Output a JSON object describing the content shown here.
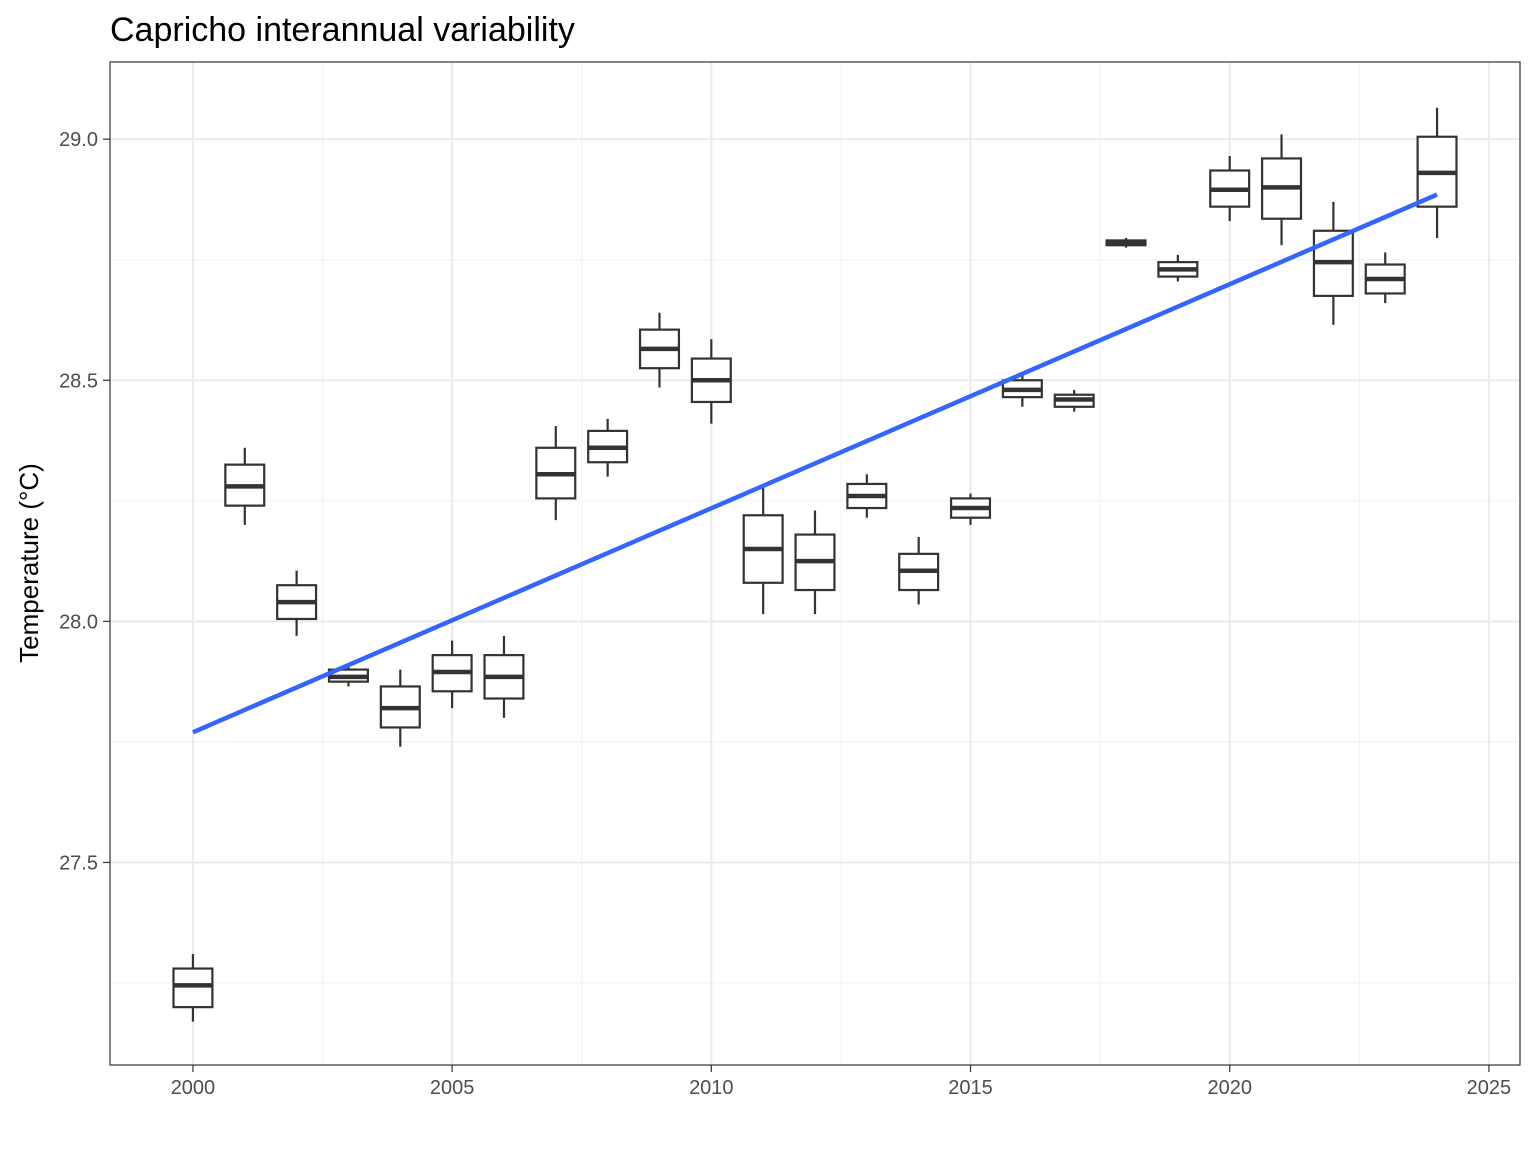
{
  "chart_data": {
    "type": "box",
    "title": "Capricho interannual variability",
    "xlabel": "",
    "ylabel": "Temperature (°C)",
    "xlim": [
      1998.4,
      2025.6
    ],
    "ylim": [
      27.08,
      29.16
    ],
    "x_ticks": [
      2000,
      2005,
      2010,
      2015,
      2020,
      2025
    ],
    "x_tick_labels": [
      "2000",
      "2005",
      "2010",
      "2015",
      "2020",
      "2025"
    ],
    "y_ticks": [
      27.5,
      28.0,
      28.5,
      29.0
    ],
    "y_tick_labels": [
      "27.5",
      "28.0",
      "28.5",
      "29.0"
    ],
    "grid": true,
    "legend": "none",
    "box_color": "#333333",
    "trend_color": "#3366ff",
    "boxes": [
      {
        "year": 2000,
        "min": 27.17,
        "q1": 27.2,
        "median": 27.245,
        "q3": 27.28,
        "max": 27.31
      },
      {
        "year": 2001,
        "min": 28.2,
        "q1": 28.24,
        "median": 28.28,
        "q3": 28.325,
        "max": 28.36
      },
      {
        "year": 2002,
        "min": 27.97,
        "q1": 28.005,
        "median": 28.04,
        "q3": 28.075,
        "max": 28.105
      },
      {
        "year": 2003,
        "min": 27.865,
        "q1": 27.875,
        "median": 27.885,
        "q3": 27.9,
        "max": 27.91
      },
      {
        "year": 2004,
        "min": 27.74,
        "q1": 27.78,
        "median": 27.82,
        "q3": 27.865,
        "max": 27.9
      },
      {
        "year": 2005,
        "min": 27.82,
        "q1": 27.855,
        "median": 27.895,
        "q3": 27.93,
        "max": 27.96
      },
      {
        "year": 2006,
        "min": 27.8,
        "q1": 27.84,
        "median": 27.885,
        "q3": 27.93,
        "max": 27.97
      },
      {
        "year": 2007,
        "min": 28.21,
        "q1": 28.255,
        "median": 28.305,
        "q3": 28.36,
        "max": 28.405
      },
      {
        "year": 2008,
        "min": 28.3,
        "q1": 28.33,
        "median": 28.36,
        "q3": 28.395,
        "max": 28.42
      },
      {
        "year": 2009,
        "min": 28.485,
        "q1": 28.525,
        "median": 28.565,
        "q3": 28.605,
        "max": 28.64
      },
      {
        "year": 2010,
        "min": 28.41,
        "q1": 28.455,
        "median": 28.5,
        "q3": 28.545,
        "max": 28.585
      },
      {
        "year": 2011,
        "min": 28.015,
        "q1": 28.08,
        "median": 28.15,
        "q3": 28.22,
        "max": 28.28
      },
      {
        "year": 2012,
        "min": 28.015,
        "q1": 28.065,
        "median": 28.125,
        "q3": 28.18,
        "max": 28.23
      },
      {
        "year": 2013,
        "min": 28.215,
        "q1": 28.235,
        "median": 28.26,
        "q3": 28.285,
        "max": 28.305
      },
      {
        "year": 2014,
        "min": 28.035,
        "q1": 28.065,
        "median": 28.105,
        "q3": 28.14,
        "max": 28.175
      },
      {
        "year": 2015,
        "min": 28.2,
        "q1": 28.215,
        "median": 28.235,
        "q3": 28.255,
        "max": 28.265
      },
      {
        "year": 2016,
        "min": 28.445,
        "q1": 28.465,
        "median": 28.48,
        "q3": 28.5,
        "max": 28.51
      },
      {
        "year": 2017,
        "min": 28.435,
        "q1": 28.445,
        "median": 28.46,
        "q3": 28.47,
        "max": 28.48
      },
      {
        "year": 2018,
        "min": 28.775,
        "q1": 28.78,
        "median": 28.785,
        "q3": 28.79,
        "max": 28.795
      },
      {
        "year": 2019,
        "min": 28.705,
        "q1": 28.715,
        "median": 28.73,
        "q3": 28.745,
        "max": 28.76
      },
      {
        "year": 2020,
        "min": 28.83,
        "q1": 28.86,
        "median": 28.895,
        "q3": 28.935,
        "max": 28.965
      },
      {
        "year": 2021,
        "min": 28.78,
        "q1": 28.835,
        "median": 28.9,
        "q3": 28.96,
        "max": 29.01
      },
      {
        "year": 2022,
        "min": 28.615,
        "q1": 28.675,
        "median": 28.745,
        "q3": 28.81,
        "max": 28.87
      },
      {
        "year": 2023,
        "min": 28.66,
        "q1": 28.68,
        "median": 28.71,
        "q3": 28.74,
        "max": 28.765
      },
      {
        "year": 2024,
        "min": 28.795,
        "q1": 28.86,
        "median": 28.93,
        "q3": 29.005,
        "max": 29.065
      }
    ],
    "trend_line": {
      "x": [
        2000,
        2024
      ],
      "y": [
        27.77,
        28.885
      ]
    }
  }
}
